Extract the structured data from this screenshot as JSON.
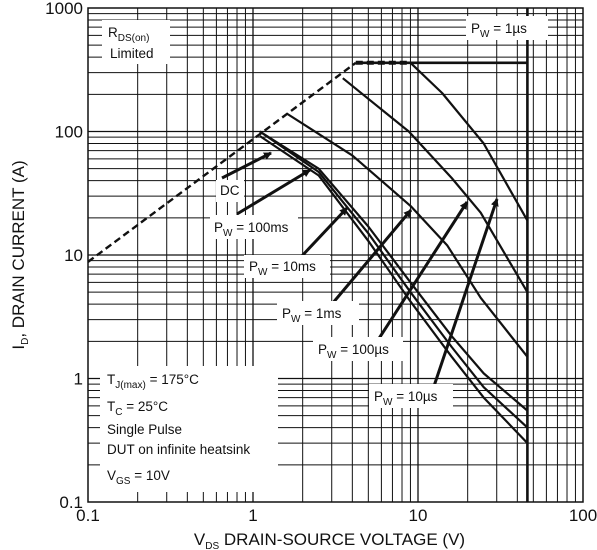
{
  "chart_data": {
    "type": "line",
    "xscale": "log",
    "yscale": "log",
    "xlim": [
      0.1,
      100
    ],
    "ylim": [
      0.1,
      1000
    ],
    "grid": true,
    "x_tick_labels": [
      "0.1",
      "1",
      "10",
      "100"
    ],
    "y_tick_labels": [
      "0.1",
      "1",
      "10",
      "100",
      "1000"
    ],
    "xlabel": {
      "sym": "V",
      "sub": "DS",
      "rest": " DRAIN-SOURCE VOLTAGE (V)"
    },
    "ylabel": {
      "sym": "I",
      "sub": "D",
      "rest": ", DRAIN CURRENT (A)"
    },
    "rds_limit": {
      "label_line1": {
        "sym": "R",
        "sub": "DS(on)"
      },
      "label_line2": "Limited",
      "points": [
        [
          0.1,
          8.8
        ],
        [
          4.2,
          360
        ]
      ]
    },
    "current_limit": {
      "points": [
        [
          4.2,
          360
        ],
        [
          9,
          360
        ]
      ]
    },
    "vds_limit": {
      "points": [
        [
          46,
          0.1
        ],
        [
          46,
          1000
        ]
      ]
    },
    "series": [
      {
        "label": {
          "sym": "P",
          "sub": "W",
          "rest": " = 1µs"
        },
        "points": [
          [
            4.2,
            360
          ],
          [
            46,
            360
          ]
        ]
      },
      {
        "label": {
          "sym": "P",
          "sub": "W",
          "rest": " = 10µs"
        },
        "points": [
          [
            9,
            360
          ],
          [
            14,
            205
          ],
          [
            25,
            80
          ],
          [
            46,
            19
          ]
        ]
      },
      {
        "label": {
          "sym": "P",
          "sub": "W",
          "rest": " = 100µs"
        },
        "points": [
          [
            3.5,
            270
          ],
          [
            8.8,
            100
          ],
          [
            16,
            42
          ],
          [
            24,
            22
          ],
          [
            46,
            5
          ]
        ]
      },
      {
        "label": {
          "sym": "P",
          "sub": "W",
          "rest": " = 1ms"
        },
        "points": [
          [
            1.6,
            140
          ],
          [
            4,
            64
          ],
          [
            9,
            25
          ],
          [
            15,
            12
          ],
          [
            24,
            4.5
          ],
          [
            46,
            1.5
          ]
        ]
      },
      {
        "label": {
          "sym": "P",
          "sub": "W",
          "rest": " = 10ms"
        },
        "points": [
          [
            1.1,
            100
          ],
          [
            2.5,
            50
          ],
          [
            5,
            17
          ],
          [
            9,
            6
          ],
          [
            16,
            2.2
          ],
          [
            25,
            1.1
          ],
          [
            46,
            0.55
          ]
        ]
      },
      {
        "label": {
          "sym": "P",
          "sub": "W",
          "rest": " = 100ms"
        },
        "points": [
          [
            1.1,
            100
          ],
          [
            2.5,
            47
          ],
          [
            5,
            15
          ],
          [
            9,
            5
          ],
          [
            16,
            1.8
          ],
          [
            25,
            0.85
          ],
          [
            46,
            0.4
          ]
        ]
      },
      {
        "label": "DC",
        "points": [
          [
            1.1,
            92
          ],
          [
            2.5,
            44
          ],
          [
            5,
            13
          ],
          [
            9,
            4.2
          ],
          [
            16,
            1.5
          ],
          [
            25,
            0.7
          ],
          [
            46,
            0.3
          ]
        ]
      }
    ],
    "annotations": {
      "tj": {
        "sym": "T",
        "sub": "J(max)",
        "rest": " = 175°C"
      },
      "tc": {
        "sym": "T",
        "sub": "C",
        "rest": " = 25°C"
      },
      "pulse": "Single Pulse",
      "heatsink": "DUT on infinite heatsink",
      "vgs": {
        "sym": "V",
        "sub": "GS",
        "rest": " = 10V"
      }
    },
    "colors": {
      "line": "#111111",
      "background": "#ffffff"
    }
  }
}
